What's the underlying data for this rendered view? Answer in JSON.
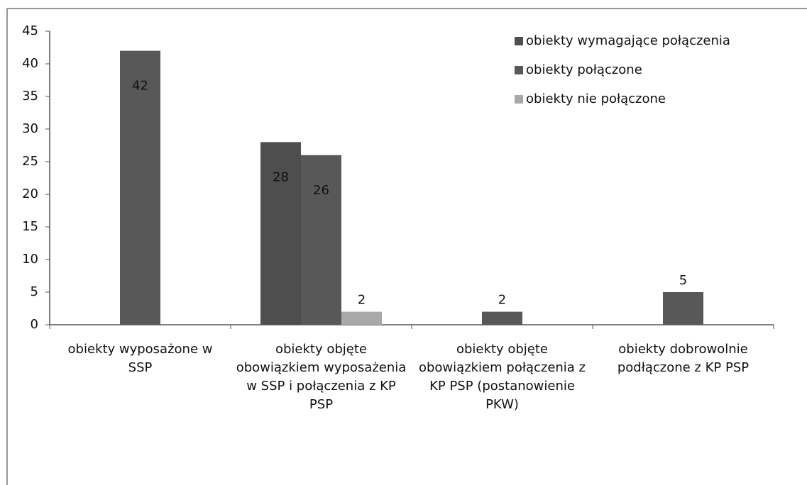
{
  "chart_data": {
    "type": "bar",
    "categories": [
      "obiekty wyposażone w SSP",
      "obiekty objęte obowiązkiem wyposażenia w SSP i połączenia z KP PSP",
      "obiekty objęte obowiązkiem połączenia z KP PSP (postanowienie PKW)",
      "obiekty dobrowolnie podłączone z KP PSP"
    ],
    "series": [
      {
        "name": "obiekty wymagające połączenia",
        "color": "#4e4e4e",
        "values": [
          null,
          28,
          null,
          null
        ]
      },
      {
        "name": "obiekty połączone",
        "color": "#585858",
        "values": [
          42,
          26,
          2,
          5
        ]
      },
      {
        "name": "obiekty nie połączone",
        "color": "#a8a8a8",
        "values": [
          null,
          2,
          null,
          null
        ]
      }
    ],
    "ylim": [
      0,
      45
    ],
    "yticks": [
      0,
      5,
      10,
      15,
      20,
      25,
      30,
      35,
      40,
      45
    ],
    "legend": "top-right"
  }
}
